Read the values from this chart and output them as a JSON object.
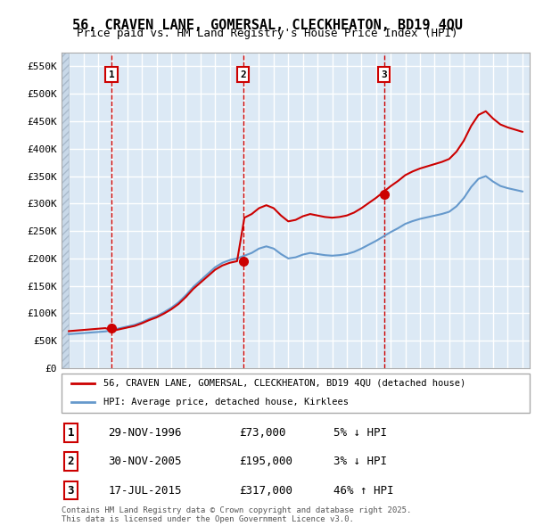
{
  "title_line1": "56, CRAVEN LANE, GOMERSAL, CLECKHEATON, BD19 4QU",
  "title_line2": "Price paid vs. HM Land Registry's House Price Index (HPI)",
  "ylabel": "",
  "xlabel": "",
  "ylim": [
    0,
    575000
  ],
  "yticks": [
    0,
    50000,
    100000,
    150000,
    200000,
    250000,
    300000,
    350000,
    400000,
    450000,
    500000,
    550000
  ],
  "ytick_labels": [
    "£0",
    "£50K",
    "£100K",
    "£150K",
    "£200K",
    "£250K",
    "£300K",
    "£350K",
    "£400K",
    "£450K",
    "£500K",
    "£550K"
  ],
  "bg_color": "#dce9f5",
  "plot_bg": "#dce9f5",
  "grid_color": "#ffffff",
  "sale_dates": [
    "1996-11-29",
    "2005-11-30",
    "2015-07-17"
  ],
  "sale_prices": [
    73000,
    195000,
    317000
  ],
  "sale_labels": [
    "1",
    "2",
    "3"
  ],
  "legend_line1": "56, CRAVEN LANE, GOMERSAL, CLECKHEATON, BD19 4QU (detached house)",
  "legend_line2": "HPI: Average price, detached house, Kirklees",
  "table_rows": [
    [
      "1",
      "29-NOV-1996",
      "£73,000",
      "5% ↓ HPI"
    ],
    [
      "2",
      "30-NOV-2005",
      "£195,000",
      "3% ↓ HPI"
    ],
    [
      "3",
      "17-JUL-2015",
      "£317,000",
      "46% ↑ HPI"
    ]
  ],
  "footer": "Contains HM Land Registry data © Crown copyright and database right 2025.\nThis data is licensed under the Open Government Licence v3.0.",
  "hpi_color": "#6699cc",
  "sale_line_color": "#cc0000",
  "sale_marker_color": "#cc0000",
  "vline_color": "#cc0000",
  "hatch_color": "#bbccdd"
}
